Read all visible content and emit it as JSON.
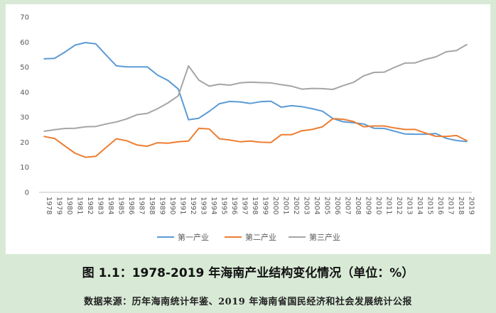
{
  "caption": "图 1.1：1978-2019 年海南产业结构变化情况（单位：%）",
  "source_note": "数据来源：历年海南统计年鉴、2019 年海南省国民经济和社会发展统计公报",
  "chart_data": {
    "type": "line",
    "x": [
      "1978",
      "1979",
      "1980",
      "1981",
      "1982",
      "1983",
      "1984",
      "1985",
      "1986",
      "1987",
      "1988",
      "1989",
      "1990",
      "1991",
      "1992",
      "1993",
      "1994",
      "1995",
      "1996",
      "1997",
      "1998",
      "1999",
      "2000",
      "2001",
      "2002",
      "2003",
      "2004",
      "2005",
      "2006",
      "2007",
      "2008",
      "2009",
      "2010",
      "2011",
      "2012",
      "2013",
      "2014",
      "2015",
      "2016",
      "2017",
      "2018",
      "2019"
    ],
    "ylim": [
      0,
      70
    ],
    "yticks": [
      0,
      10,
      20,
      30,
      40,
      50,
      60,
      70
    ],
    "grid": false,
    "legend": "bottom",
    "series": [
      {
        "name": "第一产业",
        "color": "#5b9bd5",
        "values": [
          53.3,
          53.5,
          56.0,
          58.8,
          59.8,
          59.3,
          54.8,
          50.5,
          50.1,
          50.1,
          50.1,
          46.8,
          44.7,
          41.3,
          29.0,
          29.6,
          32.3,
          35.4,
          36.3,
          36.1,
          35.5,
          36.2,
          36.4,
          34.0,
          34.6,
          34.2,
          33.4,
          32.4,
          29.5,
          28.2,
          27.8,
          27.3,
          25.6,
          25.5,
          24.4,
          23.3,
          23.2,
          23.2,
          23.5,
          21.6,
          20.7,
          20.3
        ]
      },
      {
        "name": "第二产业",
        "color": "#ed7d31",
        "values": [
          22.3,
          21.5,
          18.5,
          15.6,
          14.0,
          14.4,
          17.9,
          21.4,
          20.6,
          18.9,
          18.4,
          19.8,
          19.6,
          20.2,
          20.5,
          25.6,
          25.3,
          21.4,
          20.9,
          20.2,
          20.5,
          20.0,
          19.9,
          23.0,
          23.0,
          24.6,
          25.1,
          26.2,
          29.4,
          29.2,
          28.3,
          26.2,
          26.5,
          26.5,
          25.7,
          25.1,
          25.1,
          23.7,
          22.4,
          22.3,
          22.7,
          20.7
        ]
      },
      {
        "name": "第三产业",
        "color": "#a5a5a5",
        "values": [
          24.4,
          25.0,
          25.5,
          25.6,
          26.2,
          26.3,
          27.3,
          28.1,
          29.3,
          31.0,
          31.5,
          33.4,
          35.7,
          38.5,
          50.5,
          44.8,
          42.4,
          43.2,
          42.8,
          43.7,
          44.0,
          43.8,
          43.7,
          43.0,
          42.4,
          41.2,
          41.5,
          41.4,
          41.1,
          42.6,
          43.9,
          46.5,
          47.9,
          48.0,
          49.9,
          51.6,
          51.7,
          53.1,
          54.1,
          56.1,
          56.6,
          59.0
        ]
      }
    ]
  }
}
